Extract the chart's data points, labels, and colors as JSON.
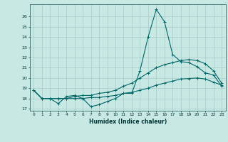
{
  "xlabel": "Humidex (Indice chaleur)",
  "bg_color": "#c8e8e4",
  "grid_color": "#a8cccc",
  "line_color": "#006666",
  "xlim": [
    -0.5,
    23.5
  ],
  "ylim": [
    16.8,
    27.2
  ],
  "yticks": [
    17,
    18,
    19,
    20,
    21,
    22,
    23,
    24,
    25,
    26
  ],
  "xticks": [
    0,
    1,
    2,
    3,
    4,
    5,
    6,
    7,
    8,
    9,
    10,
    11,
    12,
    13,
    14,
    15,
    16,
    17,
    18,
    19,
    20,
    21,
    22,
    23
  ],
  "line1": [
    18.8,
    18.0,
    18.0,
    17.5,
    18.2,
    18.3,
    18.0,
    17.2,
    17.4,
    17.7,
    18.0,
    18.5,
    18.5,
    20.7,
    24.0,
    26.7,
    25.5,
    22.3,
    21.6,
    21.5,
    21.1,
    20.5,
    20.3,
    19.2
  ],
  "line2": [
    18.8,
    18.0,
    18.0,
    18.0,
    18.0,
    18.2,
    18.3,
    18.3,
    18.5,
    18.6,
    18.8,
    19.2,
    19.5,
    20.0,
    20.5,
    21.0,
    21.3,
    21.5,
    21.7,
    21.8,
    21.7,
    21.4,
    20.7,
    19.5
  ],
  "line3": [
    18.8,
    18.0,
    18.0,
    18.0,
    18.0,
    18.0,
    18.0,
    18.1,
    18.1,
    18.2,
    18.3,
    18.5,
    18.6,
    18.8,
    19.0,
    19.3,
    19.5,
    19.7,
    19.9,
    19.95,
    20.0,
    19.9,
    19.6,
    19.3
  ]
}
